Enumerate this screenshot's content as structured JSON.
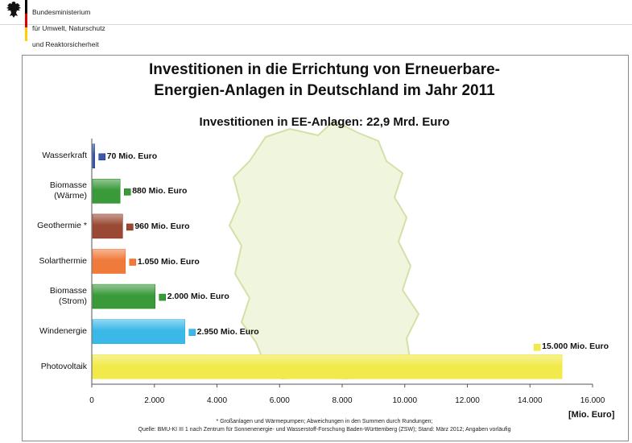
{
  "header": {
    "ministry_lines": [
      "Bundesministerium",
      "für Umwelt, Naturschutz",
      "und Reaktorsicherheit"
    ],
    "flag_colors": [
      "#000000",
      "#dd0000",
      "#ffce00"
    ]
  },
  "chart_data": {
    "type": "bar",
    "orientation": "horizontal",
    "title": "Investitionen in die Errichtung von Erneuerbare-\nEnergien-Anlagen in Deutschland im Jahr 2011",
    "subtitle": "Investitionen in EE-Anlagen: 22,9 Mrd. Euro",
    "xunit": "[Mio. Euro]",
    "xlim": [
      0,
      16000
    ],
    "xticks": [
      0,
      2000,
      4000,
      6000,
      8000,
      10000,
      12000,
      14000,
      16000
    ],
    "xtick_labels": [
      "0",
      "2.000",
      "4.000",
      "6.000",
      "8.000",
      "10.000",
      "12.000",
      "14.000",
      "16.000"
    ],
    "grid": false,
    "categories": [
      "Wasserkraft",
      "Biomasse\n(Wärme)",
      "Geothermie *",
      "Solarthermie",
      "Biomasse\n(Strom)",
      "Windenergie",
      "Photovoltaik"
    ],
    "values": [
      70,
      880,
      960,
      1050,
      2000,
      2950,
      15000
    ],
    "data_labels": [
      "70 Mio. Euro",
      "880 Mio. Euro",
      "960 Mio. Euro",
      "1.050 Mio. Euro",
      "2.000 Mio. Euro",
      "2.950 Mio. Euro",
      "15.000 Mio. Euro"
    ],
    "colors": [
      "#3c5aa8",
      "#3a9a3a",
      "#9a4a34",
      "#f07a3a",
      "#3a9a3a",
      "#3ab8e8",
      "#f2ea4a"
    ],
    "background_image": "germany-map-silhouette"
  },
  "footnotes": [
    "* Großanlagen und Wärmepumpen; Abweichungen in den Summen durch Rundungen;",
    "Quelle: BMU-KI III 1 nach Zentrum für Sonnenenergie- und Wasserstoff-Forschung Baden-Württemberg (ZSW); Stand: März 2012; Angaben vorläufig"
  ]
}
